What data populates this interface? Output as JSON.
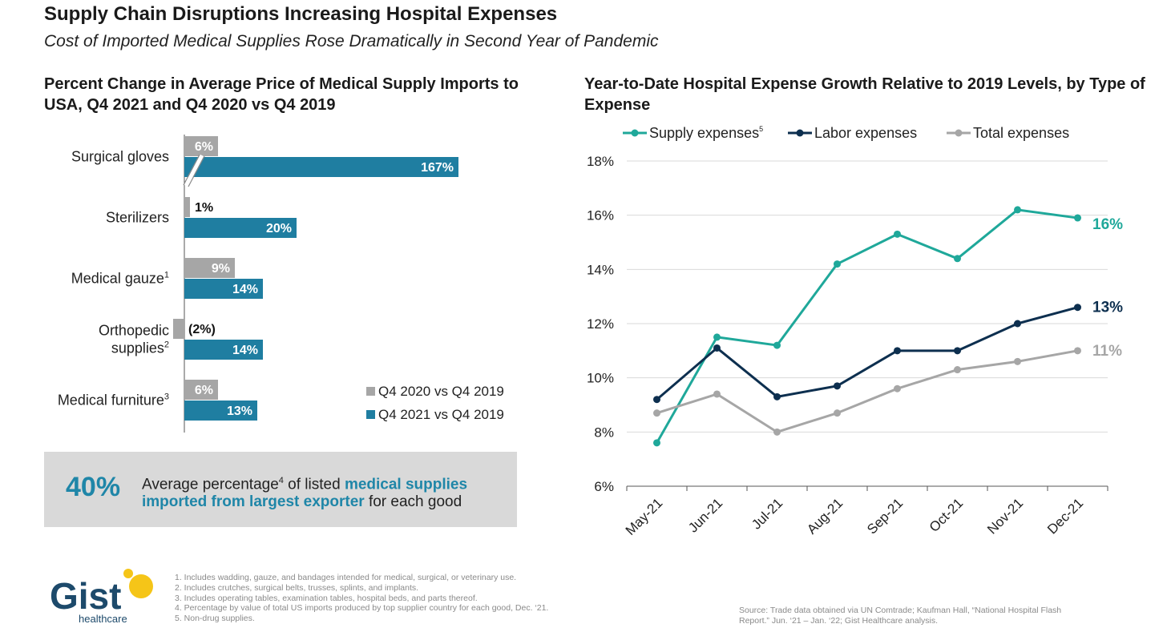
{
  "header": {
    "title": "Supply Chain Disruptions Increasing Hospital Expenses",
    "subtitle": "Cost of Imported Medical Supplies Rose Dramatically in Second Year of Pandemic"
  },
  "chart_data": [
    {
      "type": "bar",
      "orientation": "horizontal",
      "title": "Percent Change in Average Price of Medical Supply Imports to USA, Q4 2021 and Q4 2020 vs Q4 2019",
      "categories": [
        {
          "label": "Surgical gloves",
          "sup": ""
        },
        {
          "label": "Sterilizers",
          "sup": ""
        },
        {
          "label": "Medical gauze",
          "sup": "1"
        },
        {
          "label": "Orthopedic supplies",
          "sup": "2",
          "lines": [
            "Orthopedic",
            "supplies"
          ]
        },
        {
          "label": "Medical furniture",
          "sup": "3"
        }
      ],
      "series": [
        {
          "name": "Q4 2020 vs Q4 2019",
          "color": "#a6a6a6",
          "values": [
            6,
            1,
            9,
            -2,
            6
          ],
          "labels": [
            "6%",
            "1%",
            "9%",
            "(2%)",
            "6%"
          ]
        },
        {
          "name": "Q4 2021 vs Q4 2019",
          "color": "#1f7ea1",
          "values": [
            167,
            20,
            14,
            14,
            13
          ],
          "labels": [
            "167%",
            "20%",
            "14%",
            "14%",
            "13%"
          ]
        }
      ],
      "axis_break": "Surgical gloves bar broken (167%)",
      "legend_position": "bottom-right"
    },
    {
      "type": "line",
      "title": "Year-to-Date Hospital Expense Growth Relative to 2019 Levels, by Type of Expense",
      "x": [
        "May-21",
        "Jun-21",
        "Jul-21",
        "Aug-21",
        "Sep-21",
        "Oct-21",
        "Nov-21",
        "Dec-21"
      ],
      "yticks": [
        "6%",
        "8%",
        "10%",
        "12%",
        "14%",
        "16%",
        "18%"
      ],
      "ylim": [
        6,
        18
      ],
      "grid": true,
      "legend_position": "top",
      "series": [
        {
          "name": "Supply expenses",
          "sup": "5",
          "color": "#1fa89a",
          "values": [
            7.6,
            11.5,
            11.2,
            14.2,
            15.3,
            14.4,
            16.2,
            15.9
          ],
          "end_label": "16%"
        },
        {
          "name": "Labor expenses",
          "sup": "",
          "color": "#0d2f4f",
          "values": [
            9.2,
            11.1,
            9.3,
            9.7,
            11.0,
            11.0,
            12.0,
            12.6
          ],
          "end_label": "13%"
        },
        {
          "name": "Total expenses",
          "sup": "",
          "color": "#a6a6a6",
          "values": [
            8.7,
            9.4,
            8.0,
            8.7,
            9.6,
            10.3,
            10.6,
            11.0
          ],
          "end_label": "11%"
        }
      ]
    }
  ],
  "callout": {
    "big": "40%",
    "text_a": "Average percentage",
    "sup": "4",
    "text_b": " of listed ",
    "highlight": "medical supplies imported from largest exporter",
    "text_c": " for each good"
  },
  "logo": {
    "word": "Gist",
    "sub": "healthcare",
    "colors": {
      "text": "#1d4a6b",
      "dot": "#f5c518"
    }
  },
  "footnotes": [
    "1.  Includes wadding, gauze, and bandages intended for medical, surgical, or veterinary use.",
    "2.  Includes crutches, surgical belts, trusses, splints, and implants.",
    "3.  Includes operating tables, examination tables, hospital beds, and parts thereof.",
    "4.  Percentage by value of total US imports produced by top supplier country for each good, Dec. ‘21.",
    "5.  Non-drug supplies."
  ],
  "source": [
    "Source:  Trade data obtained via UN Comtrade; Kaufman Hall, “National Hospital Flash",
    "Report.” Jun. ‘21 – Jan. ‘22; Gist Healthcare analysis."
  ]
}
